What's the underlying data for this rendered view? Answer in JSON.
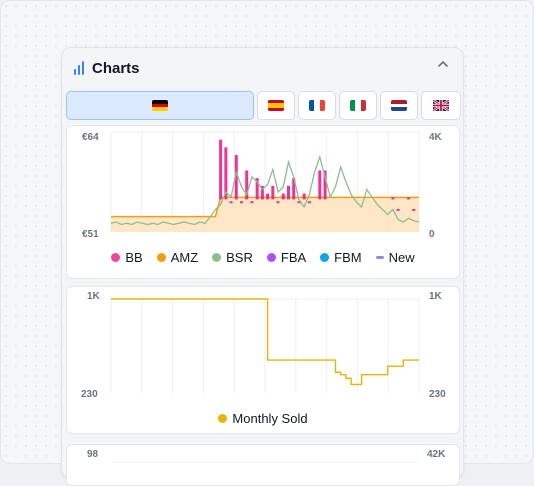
{
  "panel": {
    "title": "Charts",
    "collapse_icon": "chevron-up-icon"
  },
  "markets": [
    {
      "name": "de",
      "flag": "germany-flag-icon",
      "active": true
    },
    {
      "name": "es",
      "flag": "spain-flag-icon",
      "active": false
    },
    {
      "name": "fr",
      "flag": "france-flag-icon",
      "active": false
    },
    {
      "name": "it",
      "flag": "italy-flag-icon",
      "active": false
    },
    {
      "name": "nl",
      "flag": "netherlands-flag-icon",
      "active": false
    },
    {
      "name": "uk",
      "flag": "uk-flag-icon",
      "active": false
    }
  ],
  "chart_data": [
    {
      "type": "line",
      "left_axis": {
        "ticks": [
          "€64",
          "€51"
        ],
        "range": [
          51,
          64
        ]
      },
      "right_axis": {
        "ticks": [
          "4K",
          "0"
        ],
        "range": [
          0,
          4000
        ]
      },
      "grid": true,
      "legend_position": "bottom",
      "series": [
        {
          "name": "BB",
          "color": "#ec4899"
        },
        {
          "name": "AMZ",
          "color": "#f59e0b"
        },
        {
          "name": "BSR",
          "color": "#8fbc8f"
        },
        {
          "name": "FBA",
          "color": "#a855f7"
        },
        {
          "name": "FBM",
          "color": "#0ea5e9"
        },
        {
          "name": "New",
          "color": "#8b8fd6"
        }
      ],
      "amz_price": [
        53,
        53,
        53,
        53,
        53,
        53,
        53,
        53,
        53,
        53,
        53,
        53,
        53,
        53,
        53,
        53,
        53,
        53,
        53,
        53,
        53,
        55.5,
        55.5,
        55.5,
        55.5,
        55.5,
        55.5,
        55.5,
        55.5,
        55.5,
        55.5,
        55.5,
        55.5,
        55.5,
        55.5,
        55.5,
        55.5,
        55.5,
        55.5,
        55.5,
        55.5,
        55.5,
        55.5,
        55.5,
        55.5,
        55.5,
        55.5,
        55.5,
        55.5,
        55.5,
        55.5,
        55.5,
        55.5,
        55.5,
        55.5,
        55.5,
        55.5,
        55.5,
        55.5,
        55.5
      ],
      "bsr": [
        350,
        400,
        300,
        350,
        300,
        400,
        350,
        300,
        350,
        300,
        400,
        350,
        300,
        350,
        400,
        350,
        300,
        400,
        350,
        600,
        900,
        1100,
        1600,
        1400,
        2400,
        1800,
        1500,
        2200,
        2000,
        1700,
        1900,
        2500,
        1600,
        1800,
        2800,
        2200,
        1300,
        1000,
        1500,
        2400,
        3000,
        2200,
        1400,
        1800,
        2600,
        2000,
        1500,
        1200,
        1000,
        1700,
        1400,
        1100,
        900,
        700,
        900,
        500,
        400,
        550,
        450,
        400
      ],
      "bb_price": [
        null,
        null,
        null,
        null,
        null,
        null,
        null,
        null,
        null,
        null,
        null,
        null,
        null,
        null,
        null,
        null,
        null,
        null,
        null,
        null,
        null,
        63,
        62,
        55,
        61,
        55,
        59,
        55,
        58,
        57,
        56,
        57,
        55,
        56,
        57,
        58,
        55,
        56,
        55,
        null,
        59,
        59,
        null,
        null,
        null,
        null,
        null,
        null,
        null,
        null,
        null,
        null,
        null,
        null,
        55.5,
        54,
        null,
        55.5,
        54,
        null
      ]
    },
    {
      "type": "line",
      "left_axis": {
        "ticks": [
          "1K",
          "230"
        ],
        "range": [
          230,
          1000
        ]
      },
      "right_axis": {
        "ticks": [
          "1K",
          "230"
        ],
        "range": [
          230,
          1000
        ]
      },
      "grid": true,
      "legend_position": "bottom",
      "series": [
        {
          "name": "Monthly Sold",
          "color": "#eab308",
          "values": [
            1000,
            1000,
            1000,
            1000,
            1000,
            1000,
            1000,
            1000,
            1000,
            1000,
            1000,
            1000,
            1000,
            1000,
            1000,
            1000,
            1000,
            1000,
            1000,
            1000,
            1000,
            1000,
            1000,
            1000,
            1000,
            1000,
            1000,
            1000,
            1000,
            1000,
            500,
            500,
            500,
            500,
            500,
            500,
            500,
            500,
            500,
            500,
            500,
            500,
            500,
            400,
            380,
            350,
            300,
            300,
            380,
            380,
            380,
            380,
            380,
            450,
            450,
            450,
            500,
            500,
            500,
            500
          ]
        }
      ]
    },
    {
      "type": "line",
      "left_axis": {
        "ticks": [
          "98"
        ]
      },
      "right_axis": {
        "ticks": [
          "42K"
        ]
      }
    }
  ]
}
